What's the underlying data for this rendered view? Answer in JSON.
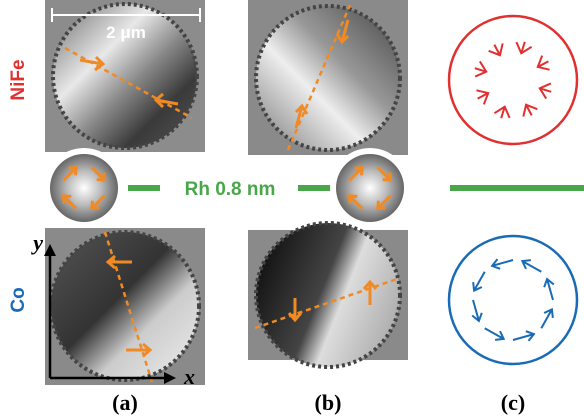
{
  "labels": {
    "top_layer": "NiFe",
    "bottom_layer": "Co",
    "scale_bar": "2 μm",
    "spacer": "Rh 0.8 nm",
    "panels": [
      "(a)",
      "(b)",
      "(c)"
    ],
    "axis_y": "y",
    "axis_x": "x"
  }
}
